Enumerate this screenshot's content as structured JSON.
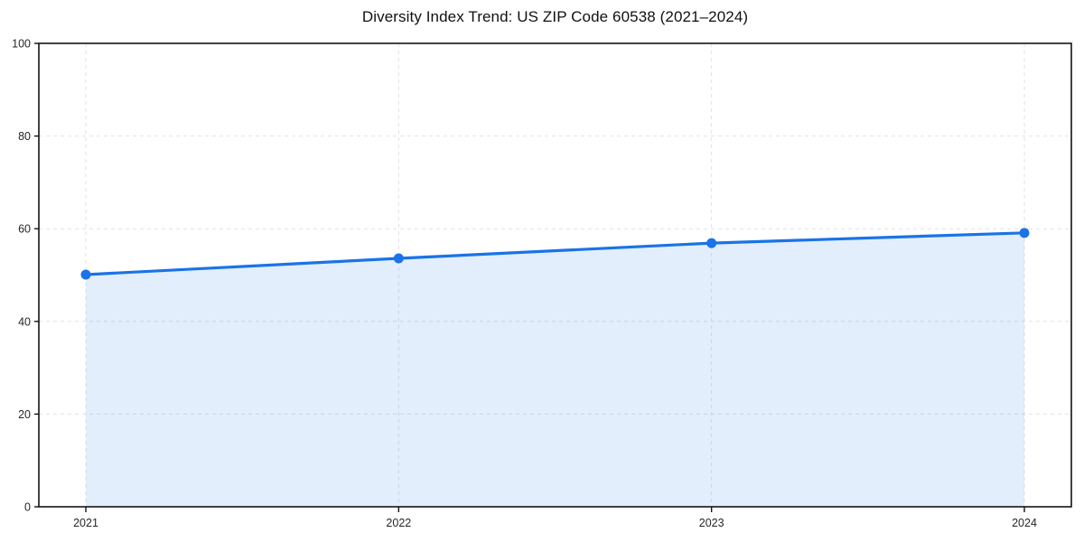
{
  "chart_data": {
    "type": "line",
    "title": "Diversity Index Trend: US ZIP Code 60538 (2021–2024)",
    "x": [
      "2021",
      "2022",
      "2023",
      "2024"
    ],
    "series": [
      {
        "name": "Diversity Index",
        "values": [
          50.1,
          53.6,
          56.9,
          59.1
        ]
      }
    ],
    "xlabel": "",
    "ylabel": "",
    "ylim": [
      0,
      100
    ],
    "yticks": [
      0,
      20,
      40,
      60,
      80,
      100
    ],
    "grid": true,
    "grid_style": "dashed",
    "legend_position": "none",
    "area_fill_to_zero": true,
    "marker": "circle",
    "colors": {
      "line": "#1A73E8",
      "marker": "#1A73E8",
      "area_fill": "rgba(26,115,232,0.12)",
      "grid": "#e2e2e2",
      "spine": "#141414",
      "tick": "#141414",
      "tick_label": "#262626",
      "title": "#111111",
      "background": "#ffffff"
    }
  }
}
